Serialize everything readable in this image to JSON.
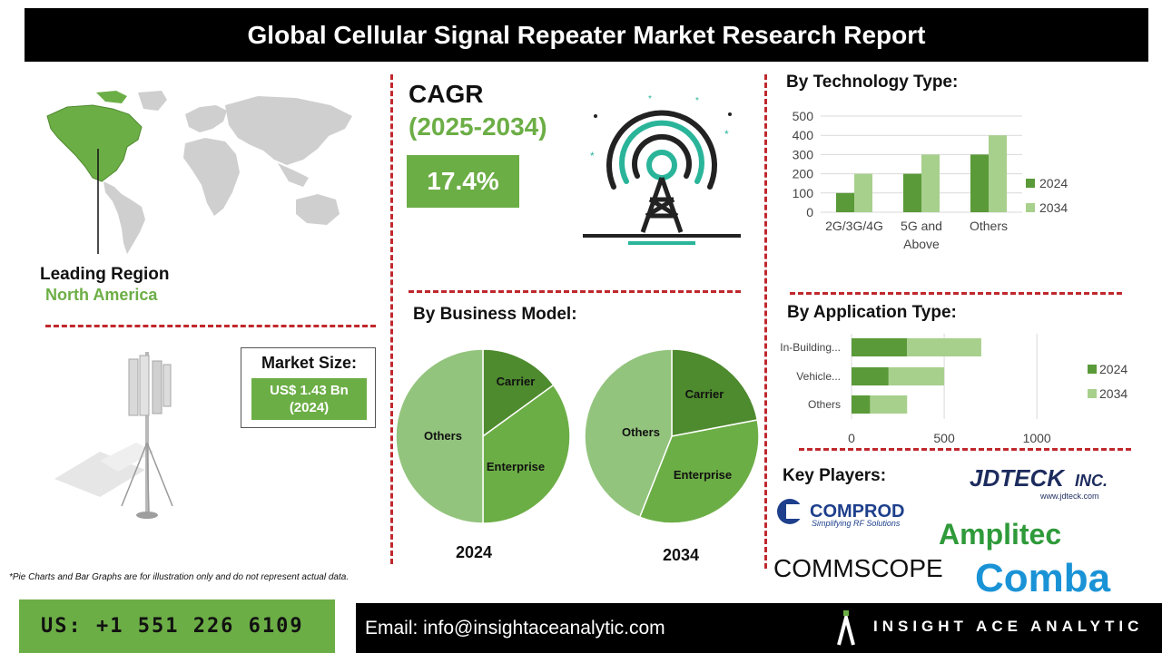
{
  "header": {
    "title": "Global Cellular Signal Repeater Market Research Report"
  },
  "leading_region": {
    "label": "Leading Region",
    "value": "North America"
  },
  "cagr": {
    "label": "CAGR",
    "period": "(2025-2034)",
    "value": "17.4%"
  },
  "market_size": {
    "label": "Market Size:",
    "value_line1": "US$ 1.43 Bn",
    "value_line2": "(2024)"
  },
  "sections": {
    "technology": "By Technology Type:",
    "business": "By Business Model:",
    "application": "By Application Type:",
    "players": "Key Players:"
  },
  "key_players": {
    "jdteck": "JDTECK",
    "jdteck_suffix": "INC.",
    "jdteck_url": "www.jdteck.com",
    "comprod": "COMPROD",
    "comprod_tagline": "Simplifying RF Solutions",
    "amplitec": "Amplitec",
    "commscope": "COMMSCOPE",
    "comba": "Comba"
  },
  "footer": {
    "disclaimer": "*Pie Charts and Bar Graphs are for illustration only and do not represent actual data.",
    "phone": "US: +1 551 226 6109",
    "email": "Email: info@insightaceanalytic.com",
    "brand": "INSIGHT ACE ANALYTIC"
  },
  "colors": {
    "dark_green": "#5a9a38",
    "light_green": "#a8d08d",
    "accent_green": "#6cae46",
    "pie_dark": "#4e8a2e",
    "pie_mid": "#6cae46",
    "pie_light": "#93c47d",
    "divider_red": "#c0282d"
  },
  "chart_data": [
    {
      "type": "bar",
      "title": "By Technology Type:",
      "categories": [
        "2G/3G/4G",
        "5G and Above",
        "Others"
      ],
      "series": [
        {
          "name": "2024",
          "values": [
            100,
            200,
            300
          ]
        },
        {
          "name": "2034",
          "values": [
            200,
            300,
            400
          ]
        }
      ],
      "ylim": [
        0,
        500
      ],
      "yticks": [
        "0",
        "100",
        "200",
        "300",
        "400",
        "500"
      ],
      "grid": true,
      "legend": "right"
    },
    {
      "type": "pie",
      "title": "By Business Model:",
      "caption": "2024",
      "labels": [
        "Carrier",
        "Enterprise",
        "Others"
      ],
      "values": [
        15,
        35,
        50
      ]
    },
    {
      "type": "pie",
      "caption": "2034",
      "labels": [
        "Carrier",
        "Enterprise",
        "Others"
      ],
      "values": [
        22,
        34,
        44
      ]
    },
    {
      "type": "bar",
      "orientation": "horizontal",
      "stacked": true,
      "title": "By Application Type:",
      "categories": [
        "In-Building...",
        "Vehicle...",
        "Others"
      ],
      "series": [
        {
          "name": "2024",
          "values": [
            300,
            200,
            100
          ]
        },
        {
          "name": "2034",
          "values": [
            400,
            300,
            200
          ]
        }
      ],
      "xlim": [
        0,
        1200
      ],
      "xticks": [
        "0",
        "500",
        "1000"
      ],
      "grid": true,
      "legend": "right"
    }
  ]
}
